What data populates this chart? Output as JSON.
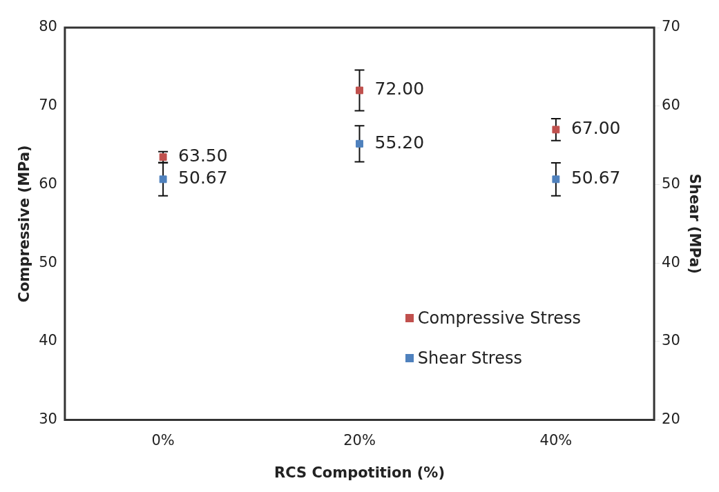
{
  "chart_data": {
    "type": "scatter",
    "xlabel": "RCS Compotition (%)",
    "ylabel": "Compressive (MPa)",
    "y2label": "Shear (MPa)",
    "categories": [
      "0%",
      "20%",
      "40%"
    ],
    "series": [
      {
        "name": "Compressive Stress",
        "color": "#c0504d",
        "values": [
          63.5,
          72.0,
          67.0
        ],
        "errors": [
          0.7,
          2.6,
          1.4
        ],
        "value_labels": [
          "63.50",
          "72.00",
          "67.00"
        ]
      },
      {
        "name": "Shear Stress",
        "color": "#4f81bd",
        "axis": "y2",
        "values": [
          50.67,
          55.2,
          50.67
        ],
        "errors": [
          2.1,
          2.3,
          2.1
        ],
        "value_labels": [
          "50.67",
          "55.20",
          "50.67"
        ]
      }
    ],
    "ylim": [
      30,
      80
    ],
    "yticks": [
      30,
      40,
      50,
      60,
      70,
      80
    ],
    "y2lim": [
      20,
      70
    ],
    "y2ticks": [
      20,
      30,
      40,
      50,
      60,
      70
    ],
    "grid": false,
    "legend": "bottom right",
    "marker": "square"
  }
}
